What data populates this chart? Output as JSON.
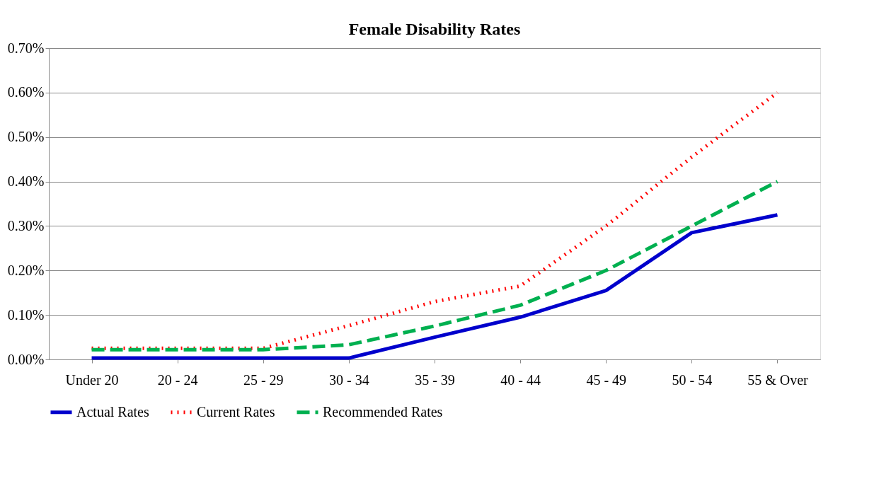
{
  "chart_data": {
    "type": "line",
    "title": "Female Disability Rates",
    "categories": [
      "Under 20",
      "20 - 24",
      "25 - 29",
      "30 - 34",
      "35 - 39",
      "40 - 44",
      "45 - 49",
      "50 - 54",
      "55 & Over"
    ],
    "series": [
      {
        "name": "Actual Rates",
        "color": "#0000cc",
        "line_style": "solid",
        "values": [
          0.003,
          0.003,
          0.003,
          0.003,
          0.05,
          0.095,
          0.155,
          0.285,
          0.325
        ]
      },
      {
        "name": "Current Rates",
        "color": "#ff0000",
        "line_style": "dotted",
        "values": [
          0.025,
          0.025,
          0.025,
          0.076,
          0.13,
          0.165,
          0.3,
          0.455,
          0.6
        ]
      },
      {
        "name": "Recommended Rates",
        "color": "#00b050",
        "line_style": "dashed",
        "values": [
          0.022,
          0.022,
          0.022,
          0.033,
          0.075,
          0.122,
          0.2,
          0.3,
          0.4
        ]
      }
    ],
    "ylim": [
      0,
      0.7
    ],
    "yticks": [
      {
        "value": 0,
        "label": "0.00%"
      },
      {
        "value": 0.1,
        "label": "0.10%"
      },
      {
        "value": 0.2,
        "label": "0.20%"
      },
      {
        "value": 0.3,
        "label": "0.30%"
      },
      {
        "value": 0.4,
        "label": "0.40%"
      },
      {
        "value": 0.5,
        "label": "0.50%"
      },
      {
        "value": 0.6,
        "label": "0.60%"
      },
      {
        "value": 0.7,
        "label": "0.70%"
      }
    ],
    "grid": "y",
    "legend": "bottom",
    "marker": "none"
  }
}
